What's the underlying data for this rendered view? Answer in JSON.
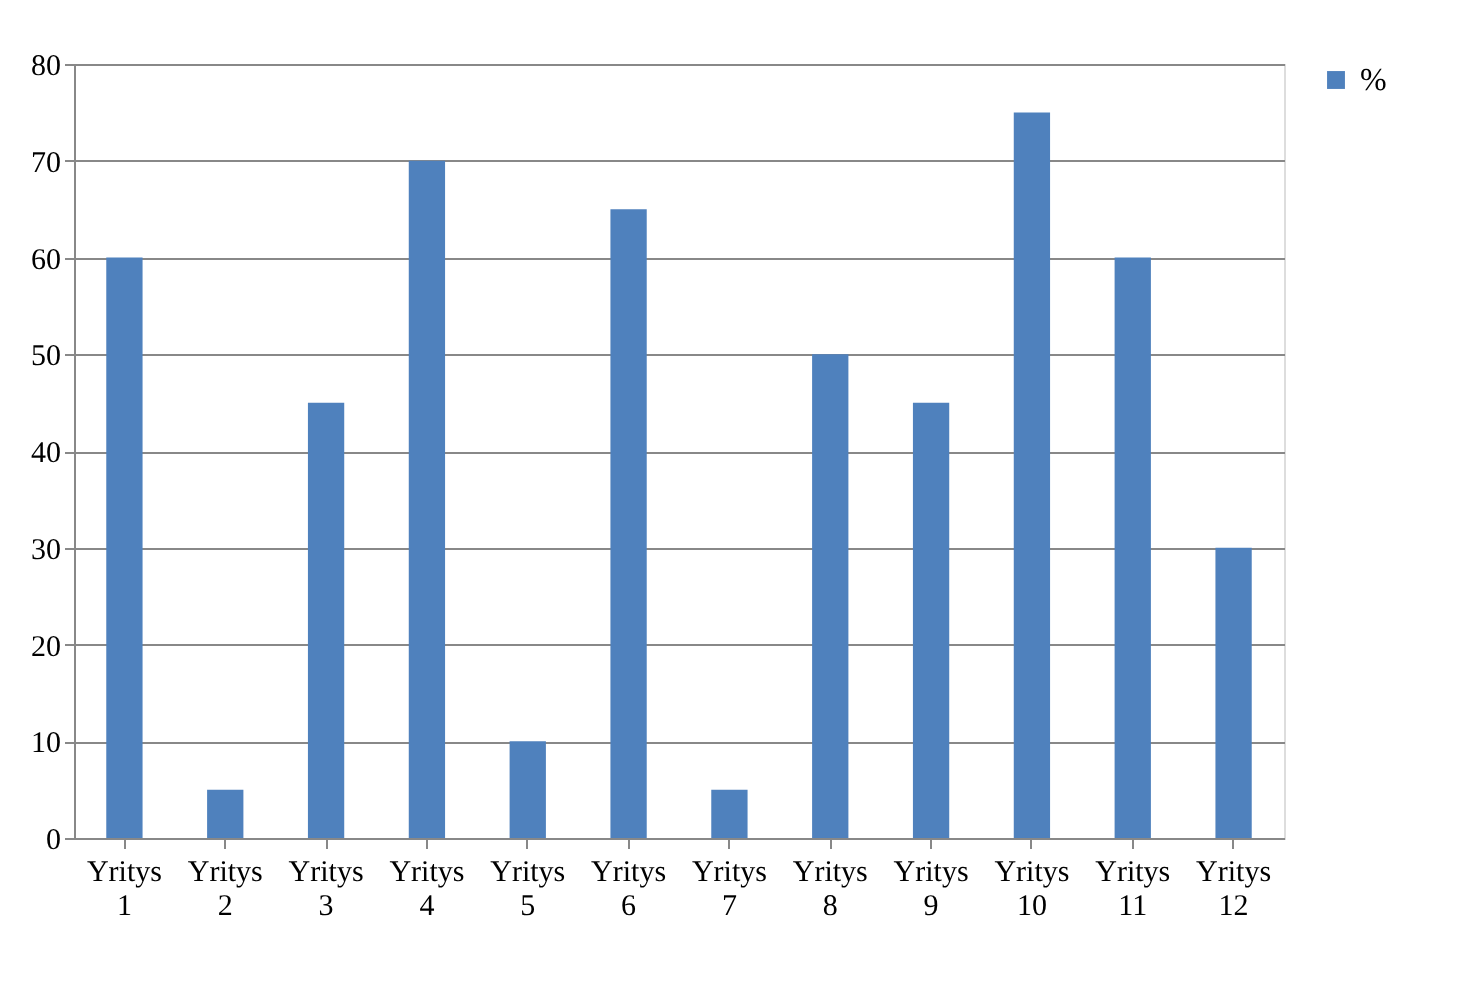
{
  "chart_data": {
    "type": "bar",
    "categories": [
      "Yritys 1",
      "Yritys 2",
      "Yritys 3",
      "Yritys 4",
      "Yritys 5",
      "Yritys 6",
      "Yritys 7",
      "Yritys 8",
      "Yritys 9",
      "Yritys 10",
      "Yritys 11",
      "Yritys 12"
    ],
    "series": [
      {
        "name": "%",
        "color": "#4f81bd",
        "values": [
          60,
          5,
          45,
          70,
          10,
          65,
          5,
          50,
          45,
          75,
          60,
          30
        ]
      }
    ],
    "ylim": [
      0,
      80
    ],
    "yticks": [
      0,
      10,
      20,
      30,
      40,
      50,
      60,
      70,
      80
    ],
    "grid": "y",
    "legend": "right"
  }
}
